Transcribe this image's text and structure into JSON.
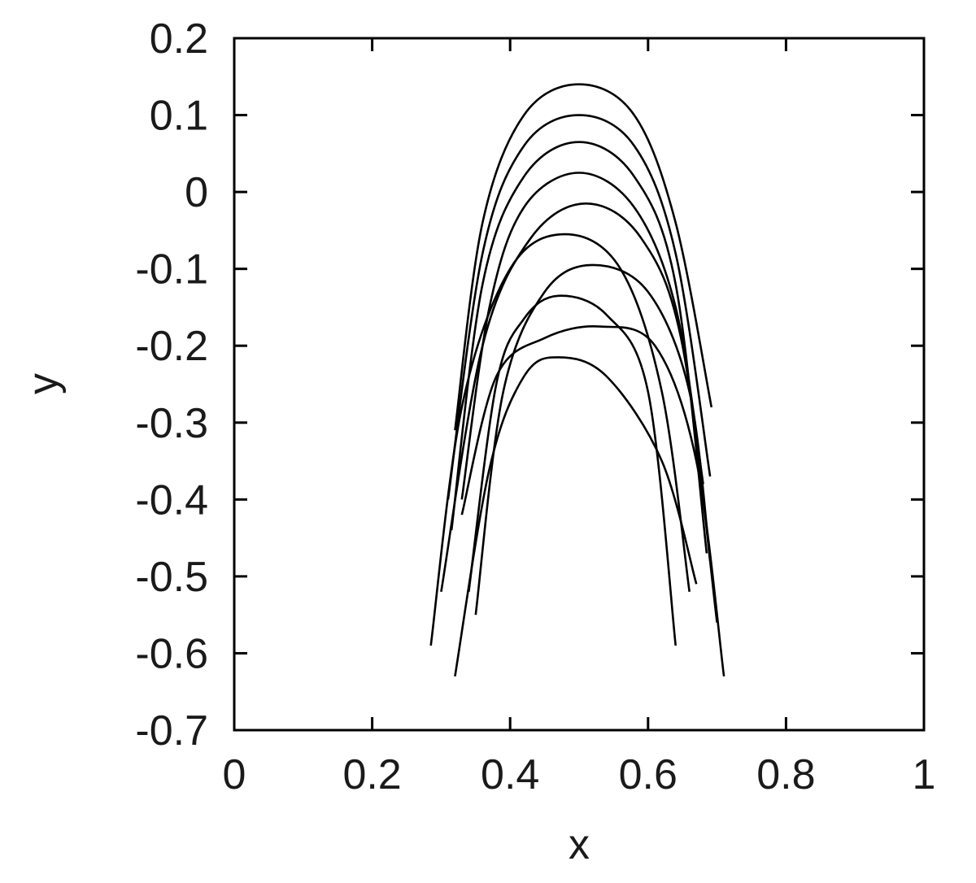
{
  "chart_data": {
    "type": "line",
    "title": "",
    "xlabel": "x",
    "ylabel": "y",
    "xlim": [
      0,
      1
    ],
    "ylim": [
      -0.7,
      0.2
    ],
    "xticks": [
      0,
      0.2,
      0.4,
      0.6,
      0.8,
      1
    ],
    "xtick_labels": [
      "0",
      "0.2",
      "0.4",
      "0.6",
      "0.8",
      "1"
    ],
    "yticks": [
      0.2,
      0.1,
      0,
      -0.1,
      -0.2,
      -0.3,
      -0.4,
      -0.5,
      -0.6,
      -0.7
    ],
    "ytick_labels": [
      "0.2",
      "0.1",
      "0",
      "-0.1",
      "-0.2",
      "-0.3",
      "-0.4",
      "-0.5",
      "-0.6",
      "-0.7"
    ],
    "grid": false,
    "legend": "none",
    "line_color": "#000000",
    "series": [
      {
        "x": [
          0.32,
          0.36,
          0.42,
          0.5,
          0.58,
          0.64,
          0.692
        ],
        "y": [
          -0.31,
          -0.04,
          0.1,
          0.14,
          0.1,
          -0.04,
          -0.28
        ]
      },
      {
        "x": [
          0.31,
          0.36,
          0.42,
          0.5,
          0.58,
          0.64,
          0.69
        ],
        "y": [
          -0.4,
          -0.08,
          0.06,
          0.1,
          0.06,
          -0.08,
          -0.37
        ]
      },
      {
        "x": [
          0.315,
          0.36,
          0.42,
          0.5,
          0.58,
          0.64,
          0.685
        ],
        "y": [
          -0.44,
          -0.12,
          0.02,
          0.065,
          0.02,
          -0.12,
          -0.47
        ]
      },
      {
        "x": [
          0.33,
          0.37,
          0.42,
          0.5,
          0.58,
          0.64,
          0.68
        ],
        "y": [
          -0.4,
          -0.15,
          -0.02,
          0.025,
          -0.02,
          -0.15,
          -0.38
        ]
      },
      {
        "x": [
          0.3,
          0.36,
          0.43,
          0.51,
          0.59,
          0.65,
          0.7
        ],
        "y": [
          -0.52,
          -0.2,
          -0.06,
          -0.015,
          -0.06,
          -0.2,
          -0.56
        ]
      },
      {
        "x": [
          0.285,
          0.33,
          0.4,
          0.48,
          0.56,
          0.62,
          0.66
        ],
        "y": [
          -0.59,
          -0.28,
          -0.1,
          -0.055,
          -0.1,
          -0.26,
          -0.52
        ]
      },
      {
        "x": [
          0.35,
          0.39,
          0.45,
          0.52,
          0.6,
          0.66,
          0.69
        ],
        "y": [
          -0.55,
          -0.26,
          -0.13,
          -0.095,
          -0.13,
          -0.26,
          -0.48
        ]
      },
      {
        "x": [
          0.34,
          0.38,
          0.42,
          0.47,
          0.54,
          0.6,
          0.64
        ],
        "y": [
          -0.52,
          -0.25,
          -0.165,
          -0.135,
          -0.16,
          -0.26,
          -0.59
        ]
      },
      {
        "x": [
          0.33,
          0.38,
          0.45,
          0.53,
          0.61,
          0.67,
          0.71
        ],
        "y": [
          -0.42,
          -0.24,
          -0.19,
          -0.175,
          -0.2,
          -0.35,
          -0.63
        ]
      },
      {
        "x": [
          0.32,
          0.37,
          0.42,
          0.47,
          0.54,
          0.62,
          0.67
        ],
        "y": [
          -0.63,
          -0.36,
          -0.24,
          -0.215,
          -0.24,
          -0.35,
          -0.51
        ]
      }
    ]
  }
}
